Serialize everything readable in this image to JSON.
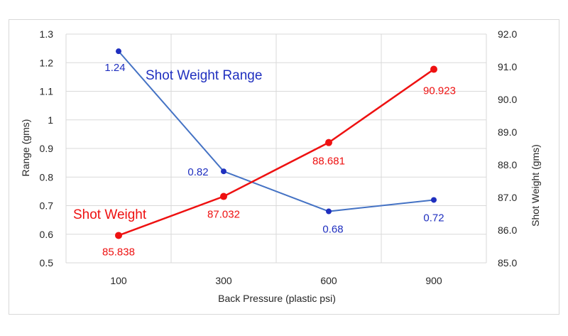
{
  "chart_data": {
    "type": "line",
    "categories": [
      "100",
      "300",
      "600",
      "900"
    ],
    "xlabel": "Back Pressure (plastic psi)",
    "ylabel_left": "Range (gms)",
    "ylabel_right": "Shot Weight (gms)",
    "ylim_left": [
      0.5,
      1.3
    ],
    "yticks_left": [
      "0.5",
      "0.6",
      "0.7",
      "0.8",
      "0.9",
      "1",
      "1.1",
      "1.2",
      "1.3"
    ],
    "ylim_right": [
      85.0,
      92.0
    ],
    "yticks_right": [
      "85.0",
      "86.0",
      "87.0",
      "88.0",
      "89.0",
      "90.0",
      "91.0",
      "92.0"
    ],
    "grid": true,
    "series": [
      {
        "name": "Shot Weight Range",
        "axis": "left",
        "color": "#4472c4",
        "marker_color": "#1f2fbf",
        "values": [
          1.24,
          0.82,
          0.68,
          0.72
        ],
        "labels": [
          "1.24",
          "0.82",
          "0.68",
          "0.72"
        ]
      },
      {
        "name": "Shot Weight",
        "axis": "right",
        "color": "#ee1111",
        "marker_color": "#ee1111",
        "values": [
          85.838,
          87.032,
          88.681,
          90.923
        ],
        "labels": [
          "85.838",
          "87.032",
          "88.681",
          "90.923"
        ]
      }
    ]
  }
}
